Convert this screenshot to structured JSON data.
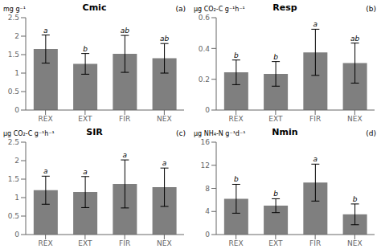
{
  "chart_data": [
    {
      "type": "bar",
      "title": "Cmic",
      "ylabel": "mg g⁻¹",
      "annotations": [
        {
          "text": "(a)"
        },
        {
          "x": "REX",
          "text": "a"
        },
        {
          "x": "EXT",
          "text": "b"
        },
        {
          "x": "FIR",
          "text": "ab"
        },
        {
          "x": "NEX",
          "text": "ab"
        }
      ],
      "categories": [
        "REX",
        "EXT",
        "FIR",
        "NEX"
      ],
      "values": [
        1.65,
        1.25,
        1.52,
        1.4
      ],
      "errors": [
        0.38,
        0.28,
        0.5,
        0.4
      ],
      "color": "#7f7f7f",
      "ylim": [
        0,
        2.5
      ],
      "yticks": [
        0,
        0.5,
        1,
        1.5,
        2,
        2.5
      ],
      "grid": false
    },
    {
      "type": "bar",
      "title": "Resp",
      "ylabel": "μg CO₂-C g⁻¹h⁻¹",
      "annotations": [
        {
          "text": "(b)"
        },
        {
          "x": "REX",
          "text": "b"
        },
        {
          "x": "EXT",
          "text": "b"
        },
        {
          "x": "FIR",
          "text": "a"
        },
        {
          "x": "NEX",
          "text": "ab"
        }
      ],
      "categories": [
        "REX",
        "EXT",
        "FIR",
        "NEX"
      ],
      "values": [
        0.245,
        0.235,
        0.375,
        0.305
      ],
      "errors": [
        0.08,
        0.08,
        0.15,
        0.13
      ],
      "color": "#7f7f7f",
      "ylim": [
        0,
        0.6
      ],
      "yticks": [
        0,
        0.2,
        0.4,
        0.6
      ],
      "grid": false
    },
    {
      "type": "bar",
      "title": "SIR",
      "ylabel": "μg CO₂-C g⁻¹h⁻¹",
      "annotations": [
        {
          "text": "(c)"
        },
        {
          "x": "REX",
          "text": "a"
        },
        {
          "x": "EXT",
          "text": "a"
        },
        {
          "x": "FIR",
          "text": "a"
        },
        {
          "x": "NEX",
          "text": "a"
        }
      ],
      "categories": [
        "REX",
        "EXT",
        "FIR",
        "NEX"
      ],
      "values": [
        1.2,
        1.15,
        1.37,
        1.28
      ],
      "errors": [
        0.38,
        0.42,
        0.65,
        0.52
      ],
      "color": "#7f7f7f",
      "ylim": [
        0,
        2.5
      ],
      "yticks": [
        0,
        0.5,
        1,
        1.5,
        2,
        2.5
      ],
      "grid": false
    },
    {
      "type": "bar",
      "title": "Nmin",
      "ylabel": "μg NH₄-N g⁻¹d⁻¹",
      "annotations": [
        {
          "text": "(d)"
        },
        {
          "x": "REX",
          "text": "b"
        },
        {
          "x": "EXT",
          "text": "b"
        },
        {
          "x": "FIR",
          "text": "a"
        },
        {
          "x": "NEX",
          "text": "b"
        }
      ],
      "categories": [
        "REX",
        "EXT",
        "FIR",
        "NEX"
      ],
      "values": [
        6.2,
        5.0,
        9.0,
        3.5
      ],
      "errors": [
        2.5,
        1.2,
        3.2,
        1.8
      ],
      "color": "#7f7f7f",
      "ylim": [
        0,
        16
      ],
      "yticks": [
        0,
        4,
        8,
        12,
        16
      ],
      "grid": false
    }
  ]
}
